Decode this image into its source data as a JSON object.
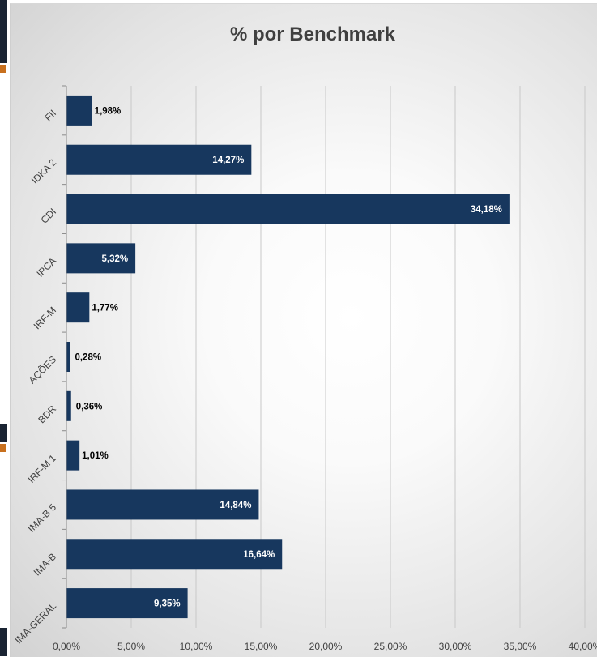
{
  "chart_data": {
    "type": "bar",
    "orientation": "horizontal",
    "title": "% por Benchmark",
    "categories": [
      "FII",
      "IDKA 2",
      "CDI",
      "IPCA",
      "IRF-M",
      "AÇÕES",
      "BDR",
      "IRF-M 1",
      "IMA-B 5",
      "IMA-B",
      "IMA-GERAL"
    ],
    "values": [
      1.98,
      14.27,
      34.18,
      5.32,
      1.77,
      0.28,
      0.36,
      1.01,
      14.84,
      16.64,
      9.35
    ],
    "value_labels": [
      "1,98%",
      "14,27%",
      "34,18%",
      "5,32%",
      "1,77%",
      "0,28%",
      "0,36%",
      "1,01%",
      "14,84%",
      "16,64%",
      "9,35%"
    ],
    "x_ticks": [
      0,
      5,
      10,
      15,
      20,
      25,
      30,
      35,
      40
    ],
    "x_tick_labels": [
      "0,00%",
      "5,00%",
      "10,00%",
      "15,00%",
      "20,00%",
      "25,00%",
      "30,00%",
      "35,00%",
      "40,00%"
    ],
    "xlim": [
      0,
      40
    ],
    "grid": true,
    "bar_color": "#17375e",
    "xlabel": "",
    "ylabel": ""
  }
}
